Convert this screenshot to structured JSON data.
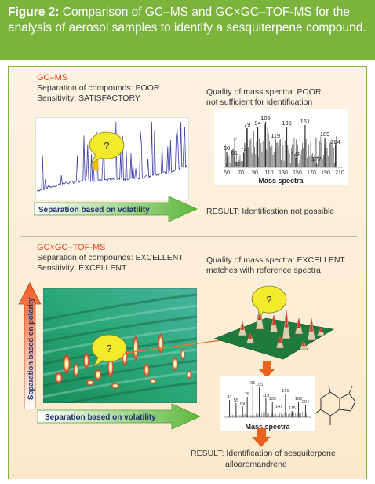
{
  "header": {
    "label": "Figure 2:",
    "text": "Comparison of GC–MS and GC×GC–TOF-MS for the analysis of aerosol samples to identify a sesquiterpene compound."
  },
  "gcms": {
    "title": "GC–MS",
    "separation": "Separation of compounds: POOR",
    "sensitivity": "Sensitivity: SATISFACTORY",
    "spectra_quality": "Quality of mass spectra: POOR",
    "spectra_note": "not sufficient for identification",
    "volatility_label": "Separation based on volatility",
    "result": "RESULT: Identification not possible",
    "question": "?",
    "spectrum_question": "?"
  },
  "gcxgc": {
    "title": "GC×GC–TOF-MS",
    "separation": "Separation of compounds: EXCELLENT",
    "sensitivity": "Sensitivity: EXCELLENT",
    "spectra_quality": "Quality of mass spectra: EXCELLENT",
    "spectra_note": "matches with reference spectra",
    "polarity_label": "Separation based on polarity",
    "volatility_label": "Separation based on volatility",
    "result_line1": "RESULT: Identification of sesquiterpene",
    "result_line2": "alloaromandrene",
    "question": "?",
    "surface_question": "?"
  },
  "spectrum_poor": {
    "xlabel": "Mass spectra",
    "x_ticks": [
      "50",
      "70",
      "90",
      "110",
      "130",
      "150",
      "170",
      "190",
      "210"
    ],
    "peak_labels": [
      {
        "text": "105",
        "mz": 105
      },
      {
        "text": "79",
        "mz": 79
      },
      {
        "text": "94",
        "mz": 94
      },
      {
        "text": "135",
        "mz": 135
      },
      {
        "text": "161",
        "mz": 161
      },
      {
        "text": "119",
        "mz": 119
      },
      {
        "text": "189",
        "mz": 189
      },
      {
        "text": "204",
        "mz": 204
      },
      {
        "text": "50",
        "mz": 50
      },
      {
        "text": "61",
        "mz": 61
      },
      {
        "text": "74",
        "mz": 74
      },
      {
        "text": "148",
        "mz": 148
      },
      {
        "text": "177",
        "mz": 177
      },
      {
        "text": "65",
        "mz": 65
      }
    ]
  },
  "spectrum_good": {
    "xlabel": "Mass spectra",
    "peak_labels": [
      "91",
      "105",
      "161",
      "189",
      "204",
      "41",
      "55",
      "69",
      "79",
      "119",
      "133",
      "147",
      "175"
    ]
  }
}
